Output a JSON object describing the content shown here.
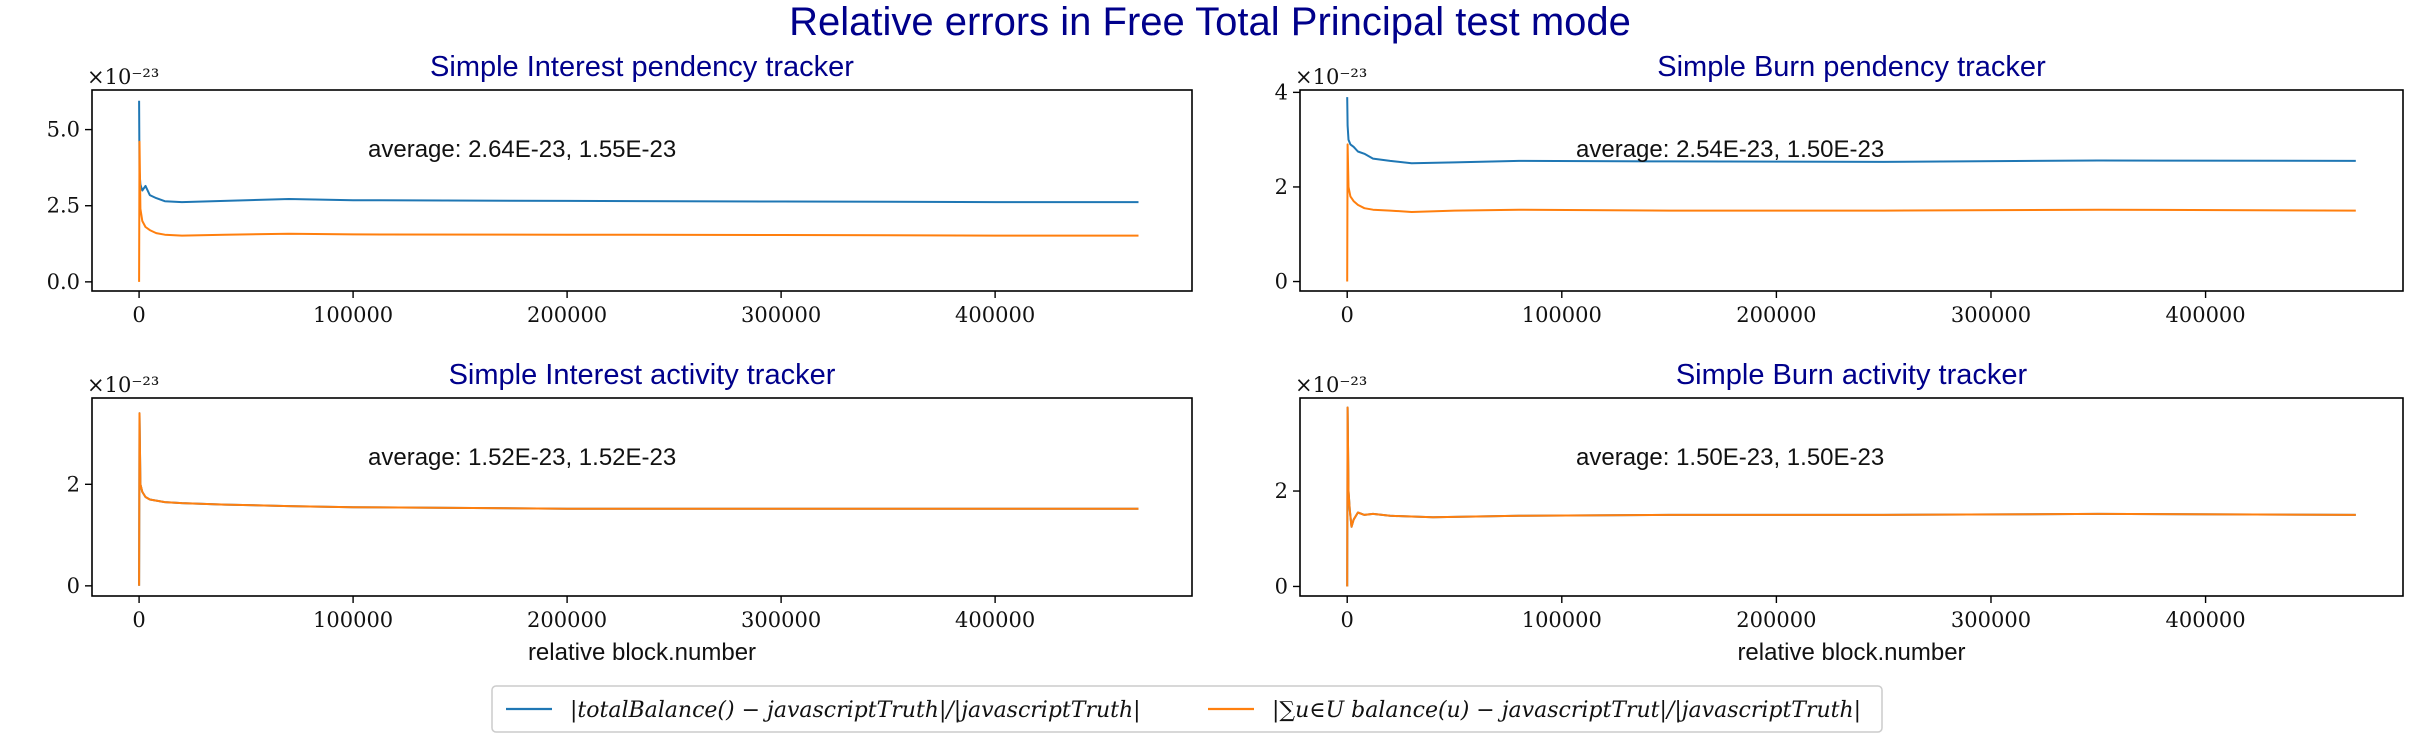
{
  "figure": {
    "title": "Relative errors in Free Total Principal test mode"
  },
  "legend": {
    "entries": [
      {
        "label": "|totalBalance() − javascriptTruth|/|javascriptTruth|",
        "color": "#1f77b4"
      },
      {
        "label": "|∑u∈U balance(u) − javascriptTrut|/|javascriptTruth|",
        "color": "#ff7f0e"
      }
    ],
    "placement": "bottom-center"
  },
  "chart_data": [
    {
      "id": "p1",
      "type": "line",
      "title": "Simple Interest pendency tracker",
      "xlabel": "",
      "ylabel": "",
      "exponent_label": "×10⁻²³",
      "annotation": "average: 2.64E-23, 1.55E-23",
      "xlim": [
        -22000,
        492000
      ],
      "ylim": [
        -0.3,
        6.3
      ],
      "xticks": [
        0,
        100000,
        200000,
        300000,
        400000
      ],
      "xtick_labels": [
        "0",
        "100000",
        "200000",
        "300000",
        "400000"
      ],
      "yticks": [
        0,
        2.5,
        5
      ],
      "ytick_labels": [
        "0.0",
        "2.5",
        "5.0"
      ],
      "grid": false,
      "series": [
        {
          "color": "#1f77b4",
          "x": [
            0,
            200,
            600,
            1500,
            3000,
            5000,
            8000,
            12000,
            20000,
            40000,
            70000,
            100000,
            200000,
            300000,
            400000,
            467000
          ],
          "y": [
            5.95,
            3.6,
            3.2,
            3.0,
            3.15,
            2.85,
            2.75,
            2.65,
            2.62,
            2.66,
            2.72,
            2.68,
            2.66,
            2.64,
            2.62,
            2.62
          ]
        },
        {
          "color": "#ff7f0e",
          "x": [
            0,
            200,
            600,
            1500,
            3000,
            5000,
            8000,
            12000,
            20000,
            40000,
            70000,
            100000,
            200000,
            300000,
            400000,
            467000
          ],
          "y": [
            0,
            4.6,
            2.4,
            2.0,
            1.8,
            1.7,
            1.6,
            1.55,
            1.52,
            1.55,
            1.58,
            1.56,
            1.55,
            1.54,
            1.52,
            1.52
          ]
        }
      ]
    },
    {
      "id": "p2",
      "type": "line",
      "title": "Simple Burn pendency tracker",
      "xlabel": "",
      "ylabel": "",
      "exponent_label": "×10⁻²³",
      "annotation": "average: 2.54E-23, 1.50E-23",
      "xlim": [
        -22000,
        492000
      ],
      "ylim": [
        -0.2,
        4.05
      ],
      "xticks": [
        0,
        100000,
        200000,
        300000,
        400000
      ],
      "xtick_labels": [
        "0",
        "100000",
        "200000",
        "300000",
        "400000"
      ],
      "yticks": [
        0,
        2,
        4
      ],
      "ytick_labels": [
        "0",
        "2",
        "4"
      ],
      "grid": false,
      "series": [
        {
          "color": "#1f77b4",
          "x": [
            0,
            200,
            600,
            1500,
            3000,
            5000,
            8000,
            12000,
            20000,
            30000,
            50000,
            80000,
            150000,
            250000,
            350000,
            470000
          ],
          "y": [
            3.9,
            3.3,
            3.0,
            2.9,
            2.85,
            2.75,
            2.7,
            2.6,
            2.55,
            2.5,
            2.52,
            2.55,
            2.54,
            2.53,
            2.56,
            2.55
          ]
        },
        {
          "color": "#ff7f0e",
          "x": [
            0,
            200,
            600,
            1500,
            3000,
            5000,
            8000,
            12000,
            20000,
            30000,
            50000,
            80000,
            150000,
            250000,
            350000,
            470000
          ],
          "y": [
            0,
            2.9,
            2.0,
            1.8,
            1.7,
            1.62,
            1.55,
            1.52,
            1.5,
            1.47,
            1.5,
            1.52,
            1.5,
            1.5,
            1.52,
            1.5
          ]
        }
      ]
    },
    {
      "id": "p3",
      "type": "line",
      "title": "Simple Interest activity tracker",
      "xlabel": "relative block.number",
      "ylabel": "",
      "exponent_label": "×10⁻²³",
      "annotation": "average: 1.52E-23, 1.52E-23",
      "xlim": [
        -22000,
        492000
      ],
      "ylim": [
        -0.2,
        3.7
      ],
      "xticks": [
        0,
        100000,
        200000,
        300000,
        400000
      ],
      "xtick_labels": [
        "0",
        "100000",
        "200000",
        "300000",
        "400000"
      ],
      "yticks": [
        0,
        2
      ],
      "ytick_labels": [
        "0",
        "2"
      ],
      "grid": false,
      "series": [
        {
          "color": "#1f77b4",
          "x": [
            0,
            200,
            600,
            1500,
            3000,
            5000,
            8000,
            12000,
            20000,
            40000,
            70000,
            100000,
            200000,
            300000,
            400000,
            467000
          ],
          "y": [
            0,
            3.4,
            2.0,
            1.85,
            1.75,
            1.7,
            1.68,
            1.65,
            1.63,
            1.6,
            1.57,
            1.55,
            1.52,
            1.52,
            1.52,
            1.52
          ]
        },
        {
          "color": "#ff7f0e",
          "x": [
            0,
            200,
            600,
            1500,
            3000,
            5000,
            8000,
            12000,
            20000,
            40000,
            70000,
            100000,
            200000,
            300000,
            400000,
            467000
          ],
          "y": [
            0,
            3.4,
            2.0,
            1.85,
            1.75,
            1.7,
            1.68,
            1.65,
            1.63,
            1.6,
            1.57,
            1.55,
            1.52,
            1.52,
            1.52,
            1.52
          ]
        }
      ]
    },
    {
      "id": "p4",
      "type": "line",
      "title": "Simple Burn activity tracker",
      "xlabel": "relative block.number",
      "ylabel": "",
      "exponent_label": "×10⁻²³",
      "annotation": "average: 1.50E-23, 1.50E-23",
      "xlim": [
        -22000,
        492000
      ],
      "ylim": [
        -0.2,
        3.95
      ],
      "xticks": [
        0,
        100000,
        200000,
        300000,
        400000
      ],
      "xtick_labels": [
        "0",
        "100000",
        "200000",
        "300000",
        "400000"
      ],
      "yticks": [
        0,
        2
      ],
      "ytick_labels": [
        "0",
        "2"
      ],
      "grid": false,
      "series": [
        {
          "color": "#1f77b4",
          "x": [
            0,
            200,
            600,
            1200,
            2000,
            3000,
            5000,
            8000,
            12000,
            20000,
            40000,
            80000,
            150000,
            250000,
            350000,
            470000
          ],
          "y": [
            0,
            3.75,
            2.0,
            1.6,
            1.25,
            1.4,
            1.55,
            1.5,
            1.52,
            1.48,
            1.45,
            1.48,
            1.5,
            1.5,
            1.52,
            1.5
          ]
        },
        {
          "color": "#ff7f0e",
          "x": [
            0,
            200,
            600,
            1200,
            2000,
            3000,
            5000,
            8000,
            12000,
            20000,
            40000,
            80000,
            150000,
            250000,
            350000,
            470000
          ],
          "y": [
            0,
            3.75,
            2.0,
            1.6,
            1.25,
            1.4,
            1.55,
            1.5,
            1.52,
            1.48,
            1.45,
            1.48,
            1.5,
            1.5,
            1.52,
            1.5
          ]
        }
      ]
    }
  ]
}
